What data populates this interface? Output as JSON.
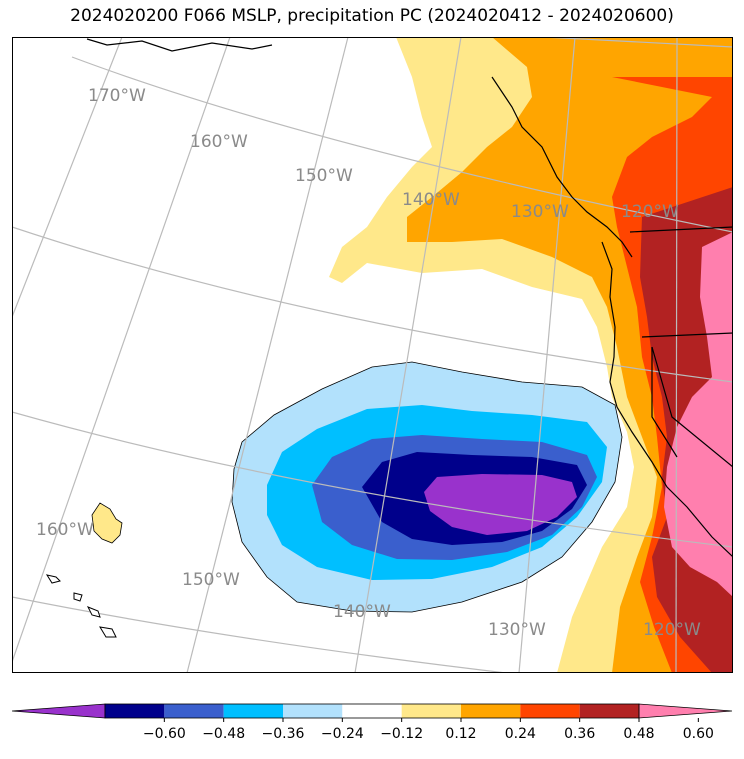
{
  "title": "2024020200 F066 MSLP, precipitation PC (2024020412 - 2024020600)",
  "longitude_labels": [
    "170°W",
    "160°W",
    "150°W",
    "140°W",
    "130°W",
    "120°W",
    "160°W",
    "150°W",
    "140°W",
    "130°W",
    "120°W"
  ],
  "colorbar": {
    "ticks": [
      "−0.60",
      "−0.48",
      "−0.36",
      "−0.24",
      "−0.12",
      "0.12",
      "0.24",
      "0.36",
      "0.48",
      "0.60"
    ],
    "colors": [
      "#9932cc",
      "#00008b",
      "#3a5fcd",
      "#00bfff",
      "#b2e1fc",
      "#ffffff",
      "#ffe88a",
      "#ffa500",
      "#ff4500",
      "#b22222",
      "#ff7fae"
    ]
  },
  "colors": {
    "neg_strong": "#9932cc",
    "neg_2": "#00008b",
    "neg_3": "#3a5fcd",
    "neg_4": "#00bfff",
    "neg_5": "#b2e1fc",
    "pos_1": "#ffe88a",
    "pos_2": "#ffa500",
    "pos_3": "#ff4500",
    "pos_4": "#b22222",
    "pos_5": "#ff7fae",
    "graticule": "#bbbbbb",
    "label": "#8a8a8a"
  }
}
